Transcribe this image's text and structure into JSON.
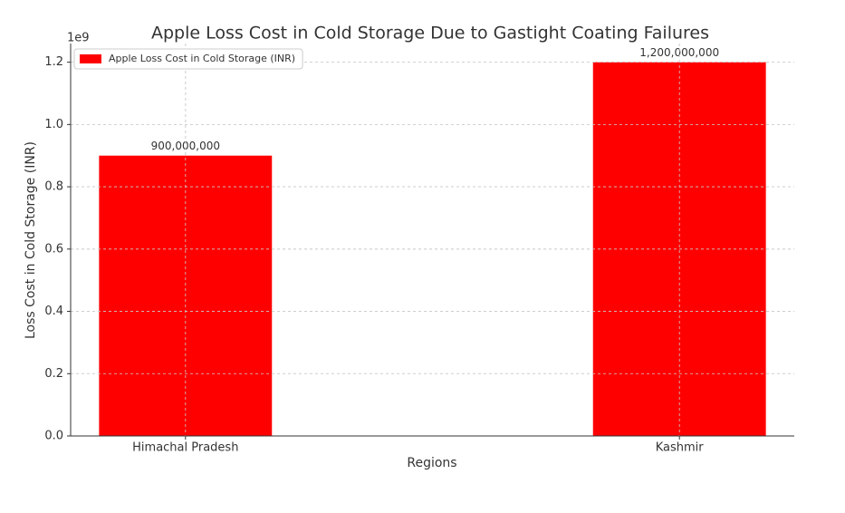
{
  "chart_data": {
    "type": "bar",
    "title": "Apple Loss Cost in Cold Storage Due to Gastight Coating Failures",
    "x_label": "Regions",
    "y_label": "Loss Cost in Cold Storage (INR)",
    "y_offset_label": "1e9",
    "categories": [
      "Himachal Pradesh",
      "Kashmir"
    ],
    "series": [
      {
        "name": "Apple Loss Cost in Cold Storage (INR)",
        "color": "#ff0000",
        "values": [
          900000000,
          1200000000
        ],
        "value_labels": [
          "900,000,000",
          "1,200,000,000"
        ]
      }
    ],
    "ylim": [
      0,
      1260000000
    ],
    "yticks": [
      {
        "value": 0,
        "label": "0.0"
      },
      {
        "value": 200000000,
        "label": "0.2"
      },
      {
        "value": 400000000,
        "label": "0.4"
      },
      {
        "value": 600000000,
        "label": "0.6"
      },
      {
        "value": 800000000,
        "label": "0.8"
      },
      {
        "value": 1000000000,
        "label": "1.0"
      },
      {
        "value": 1200000000,
        "label": "1.2"
      }
    ],
    "grid": true,
    "legend": "upper left"
  }
}
